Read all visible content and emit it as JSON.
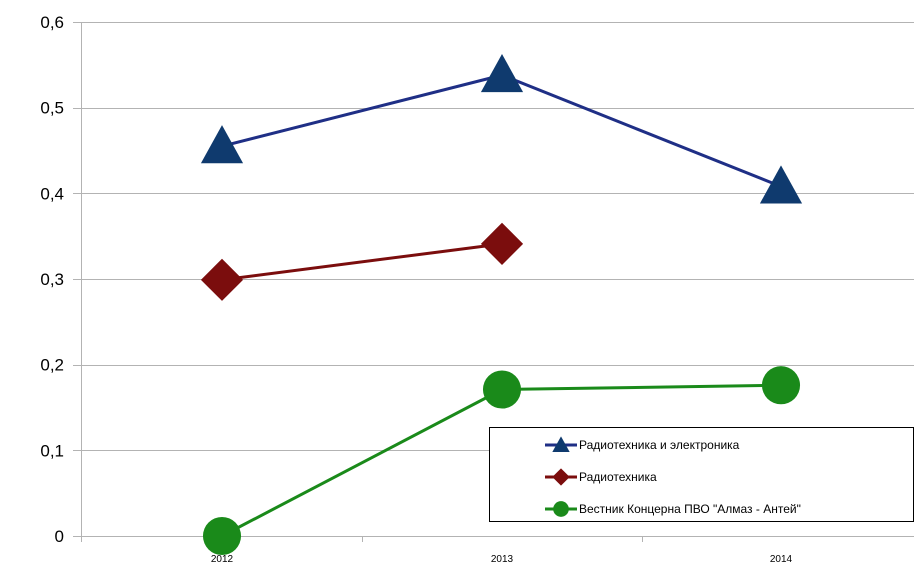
{
  "chart_data": {
    "type": "line",
    "title": "",
    "xlabel": "",
    "ylabel": "",
    "categories": [
      "2012",
      "2013",
      "2014"
    ],
    "ylim": [
      0,
      0.6
    ],
    "yticks": [
      {
        "value": 0,
        "label": "0"
      },
      {
        "value": 0.1,
        "label": "0,1"
      },
      {
        "value": 0.2,
        "label": "0,2"
      },
      {
        "value": 0.3,
        "label": "0,3"
      },
      {
        "value": 0.4,
        "label": "0,4"
      },
      {
        "value": 0.5,
        "label": "0,5"
      },
      {
        "value": 0.6,
        "label": "0,6"
      }
    ],
    "grid": true,
    "legend_position": "bottom-right",
    "series": [
      {
        "name": "Радиотехника и электроника",
        "values": [
          0.455,
          0.538,
          0.408
        ],
        "color": "#1f2f86",
        "marker_color": "#0f3a6e",
        "marker": "triangle"
      },
      {
        "name": "Радиотехника",
        "values": [
          0.299,
          0.341,
          null
        ],
        "color": "#7b0d0d",
        "marker_color": "#7b0d0d",
        "marker": "diamond"
      },
      {
        "name": "Вестник Концерна ПВО \"Алмаз - Антей\"",
        "values": [
          0.0,
          0.171,
          0.176
        ],
        "color": "#1a8a1a",
        "marker_color": "#1a8a1a",
        "marker": "circle"
      }
    ]
  }
}
